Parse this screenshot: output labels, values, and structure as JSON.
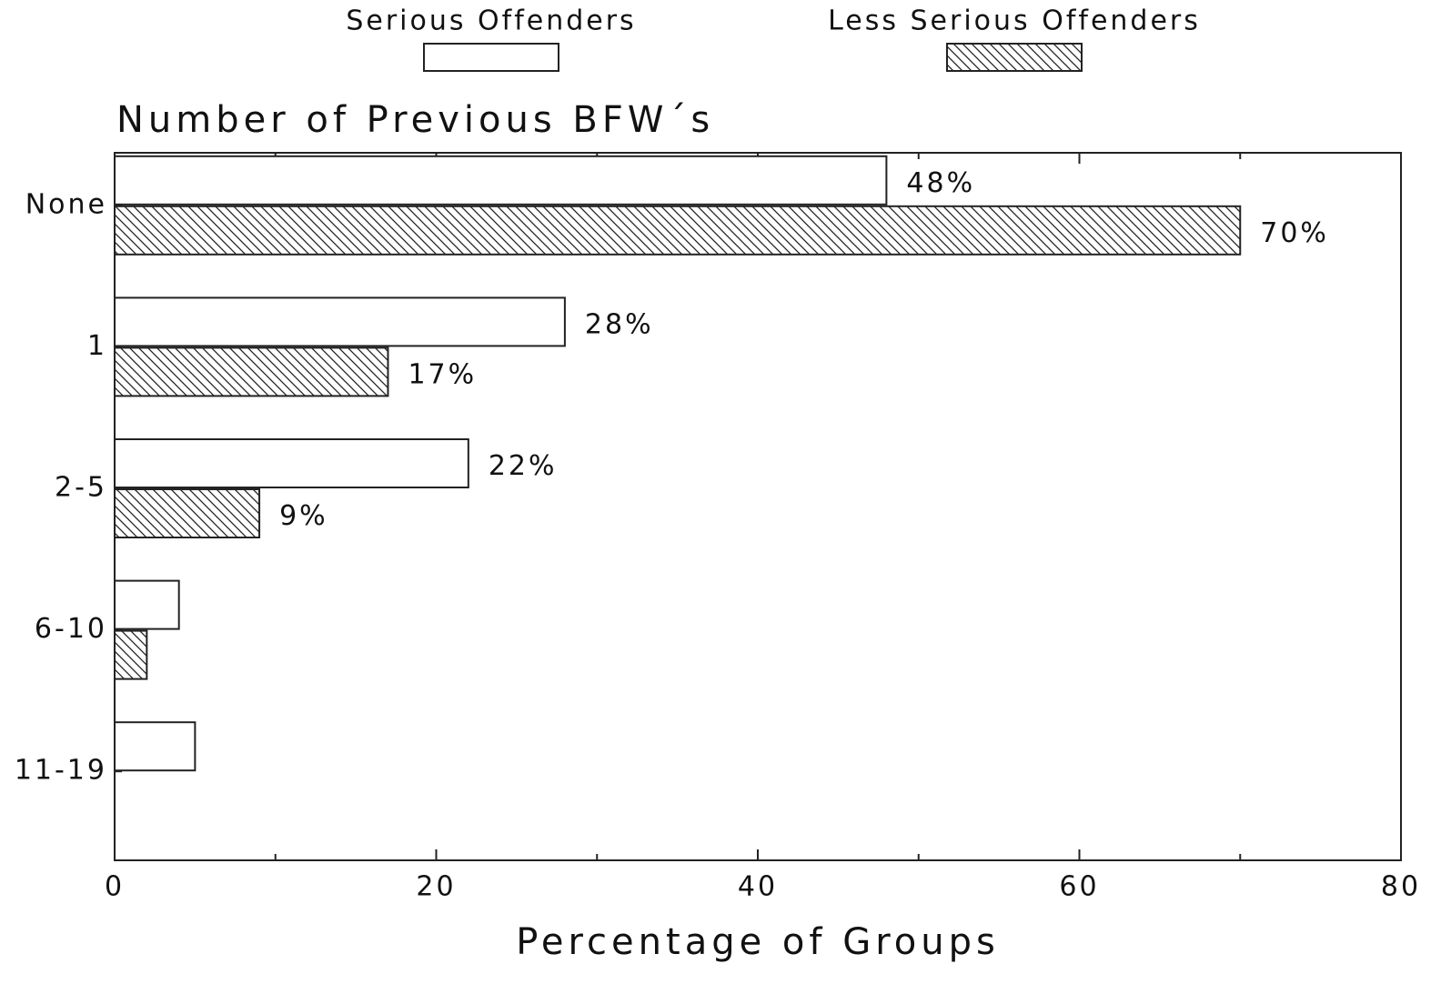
{
  "chart_data": {
    "type": "hbar",
    "title": "Number of Previous BFW´s",
    "xlabel": "Percentage of Groups",
    "categories": [
      "None",
      "1",
      "2-5",
      "6-10",
      "11-19"
    ],
    "series": [
      {
        "name": "Serious Offenders",
        "color": "#ffffff",
        "pattern": "none",
        "values": [
          48,
          28,
          22,
          4,
          5
        ],
        "value_labels": [
          "48%",
          "28%",
          "22%",
          null,
          null
        ]
      },
      {
        "name": "Less Serious Offenders",
        "color": "#ffffff",
        "pattern": "hatch",
        "values": [
          70,
          17,
          9,
          2,
          0
        ],
        "value_labels": [
          "70%",
          "17%",
          "9%",
          null,
          null
        ]
      }
    ],
    "xlim": [
      0,
      80
    ],
    "xticks": [
      0,
      20,
      40,
      60,
      80
    ],
    "xminorticks": [
      10,
      30,
      50,
      70
    ],
    "grid": false,
    "legend": "top"
  }
}
